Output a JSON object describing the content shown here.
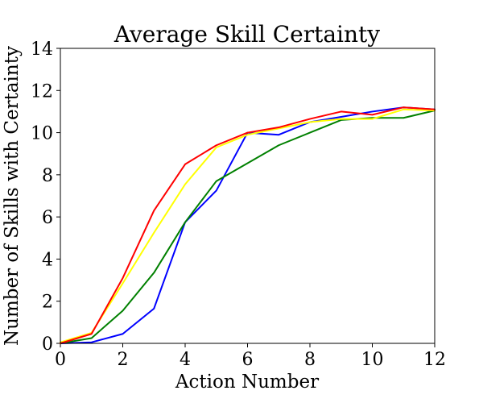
{
  "chart_data": {
    "type": "line",
    "title": "Average Skill Certainty",
    "xlabel": "Action Number",
    "ylabel": "Number of Skills with Certainty",
    "xlim": [
      0,
      12
    ],
    "ylim": [
      0,
      14
    ],
    "xticks": [
      0,
      2,
      4,
      6,
      8,
      10,
      12
    ],
    "yticks": [
      0,
      2,
      4,
      6,
      8,
      10,
      12,
      14
    ],
    "grid": false,
    "x": [
      0,
      1,
      2,
      3,
      4,
      5,
      6,
      7,
      8,
      9,
      10,
      11,
      12
    ],
    "series": [
      {
        "color": "#0000ff",
        "values": [
          0,
          0.05,
          0.45,
          1.65,
          5.75,
          7.25,
          10.0,
          9.9,
          10.5,
          10.75,
          11.0,
          11.2,
          11.1
        ]
      },
      {
        "color": "#008000",
        "values": [
          0,
          0.25,
          1.55,
          3.35,
          5.75,
          7.7,
          8.55,
          9.4,
          10.0,
          10.6,
          10.7,
          10.7,
          11.05
        ]
      },
      {
        "color": "#ffff00",
        "values": [
          0.05,
          0.5,
          2.85,
          5.25,
          7.55,
          9.3,
          9.9,
          10.2,
          10.5,
          10.65,
          10.65,
          11.1,
          11.05
        ]
      },
      {
        "color": "#ff0000",
        "values": [
          0,
          0.45,
          3.1,
          6.3,
          8.5,
          9.4,
          10.0,
          10.25,
          10.65,
          11.0,
          10.85,
          11.2,
          11.1
        ]
      }
    ]
  }
}
